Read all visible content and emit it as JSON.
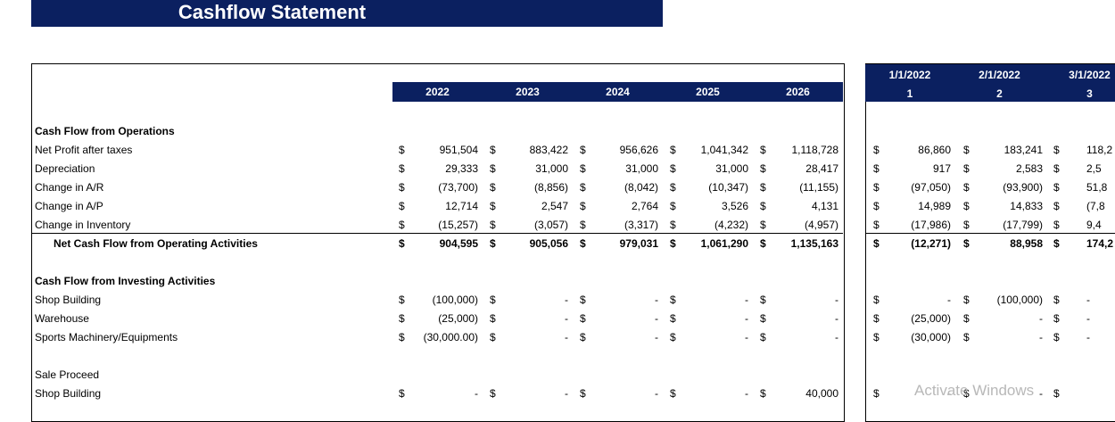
{
  "title": "Cashflow Statement",
  "annual_years": [
    "2022",
    "2023",
    "2024",
    "2025",
    "2026"
  ],
  "monthly_headers": [
    {
      "date": "1/1/2022",
      "num": "1"
    },
    {
      "date": "2/1/2022",
      "num": "2"
    },
    {
      "date": "3/1/2022",
      "num": "3"
    }
  ],
  "sections": {
    "operations": "Cash Flow from Operations",
    "investing": "Cash Flow from Investing Activities",
    "sale": "Sale Proceed"
  },
  "currency_symbol": "$",
  "rows": [
    {
      "label": "Net Profit after taxes",
      "annual": [
        "951,504",
        "883,422",
        "956,626",
        "1,041,342",
        "1,118,728"
      ],
      "monthly": [
        "86,860",
        "183,241",
        "118,2"
      ]
    },
    {
      "label": "Depreciation",
      "annual": [
        "29,333",
        "31,000",
        "31,000",
        "31,000",
        "28,417"
      ],
      "monthly": [
        "917",
        "2,583",
        "2,5"
      ]
    },
    {
      "label": "Change in A/R",
      "annual": [
        "(73,700)",
        "(8,856)",
        "(8,042)",
        "(10,347)",
        "(11,155)"
      ],
      "monthly": [
        "(97,050)",
        "(93,900)",
        "51,8"
      ]
    },
    {
      "label": "Change in A/P",
      "annual": [
        "12,714",
        "2,547",
        "2,764",
        "3,526",
        "4,131"
      ],
      "monthly": [
        "14,989",
        "14,833",
        "(7,8"
      ]
    },
    {
      "label": "Change in Inventory",
      "annual": [
        "(15,257)",
        "(3,057)",
        "(3,317)",
        "(4,232)",
        "(4,957)"
      ],
      "monthly": [
        "(17,986)",
        "(17,799)",
        "9,4"
      ]
    },
    {
      "label": "Net Cash Flow from Operating Activities",
      "bold": true,
      "annual": [
        "904,595",
        "905,056",
        "979,031",
        "1,061,290",
        "1,135,163"
      ],
      "monthly": [
        "(12,271)",
        "88,958",
        "174,2"
      ]
    },
    {
      "label": "Shop Building",
      "annual": [
        "(100,000)",
        "-",
        "-",
        "-",
        "-"
      ],
      "monthly": [
        "-",
        "(100,000)",
        "-"
      ]
    },
    {
      "label": "Warehouse",
      "annual": [
        "(25,000)",
        "-",
        "-",
        "-",
        "-"
      ],
      "monthly": [
        "(25,000)",
        "-",
        "-"
      ]
    },
    {
      "label": "Sports Machinery/Equipments",
      "annual": [
        "(30,000.00)",
        "-",
        "-",
        "-",
        "-"
      ],
      "monthly": [
        "(30,000)",
        "-",
        "-"
      ]
    },
    {
      "label": "Shop Building",
      "annual": [
        "-",
        "-",
        "-",
        "-",
        "40,000"
      ],
      "monthly": [
        "-",
        "-",
        ""
      ]
    }
  ],
  "watermark": "Activate Windows"
}
